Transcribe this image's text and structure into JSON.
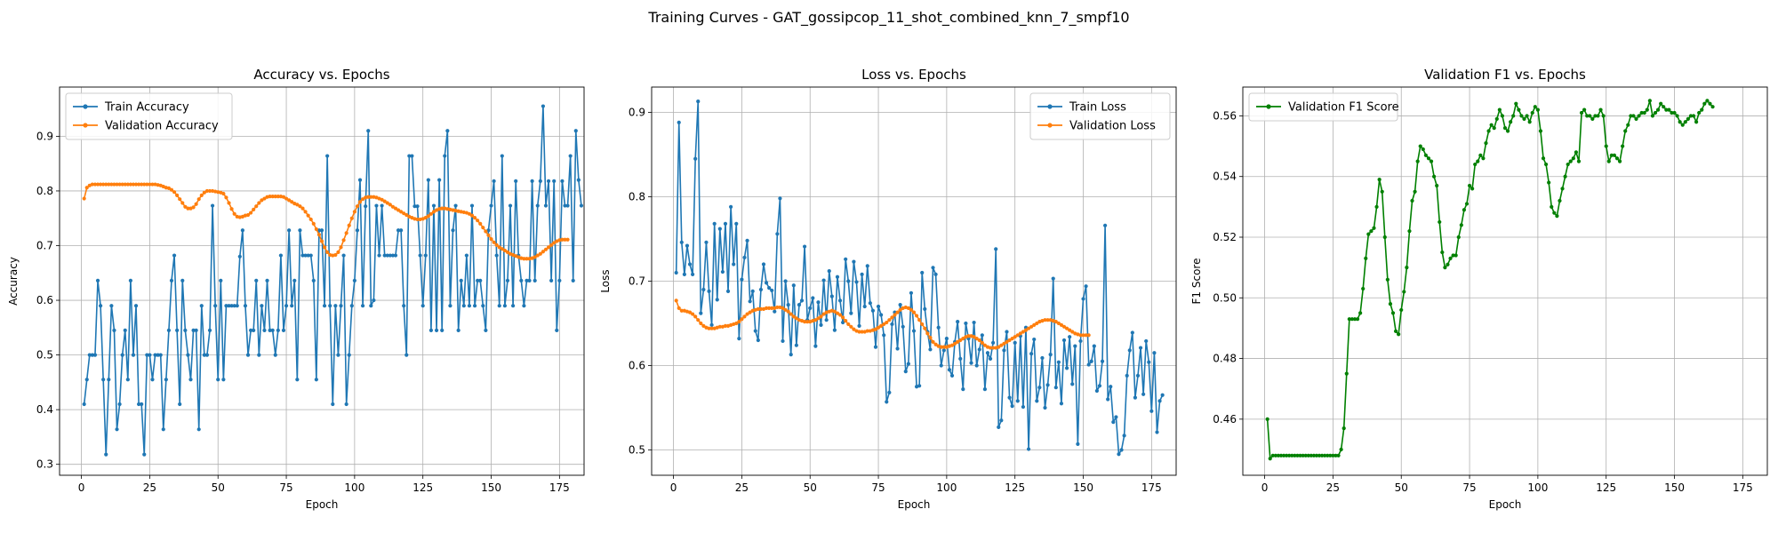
{
  "suptitle": "Training Curves - GAT_gossipcop_11_shot_combined_knn_7_smpf10",
  "colors": {
    "blue": "#1f77b4",
    "orange": "#ff7f0e",
    "green": "#008000",
    "grid": "#b0b0b0"
  },
  "chart_data": [
    {
      "type": "line",
      "title": "Accuracy vs. Epochs",
      "xlabel": "Epoch",
      "ylabel": "Accuracy",
      "xlim": [
        -8,
        184
      ],
      "ylim": [
        0.28,
        0.99
      ],
      "xticks": [
        0,
        25,
        50,
        75,
        100,
        125,
        150,
        175
      ],
      "yticks": [
        0.3,
        0.4,
        0.5,
        0.6,
        0.7,
        0.8,
        0.9
      ],
      "ytick_labels": [
        "0.3",
        "0.4",
        "0.5",
        "0.6",
        "0.7",
        "0.8",
        "0.9"
      ],
      "legend_loc": "upper-left",
      "grid": true,
      "series": [
        {
          "name": "Train Accuracy",
          "color": "#1f77b4",
          "x0": 1,
          "values": [
            0.41,
            0.455,
            0.5,
            0.5,
            0.5,
            0.636,
            0.59,
            0.455,
            0.318,
            0.455,
            0.59,
            0.545,
            0.364,
            0.41,
            0.5,
            0.545,
            0.455,
            0.636,
            0.5,
            0.59,
            0.41,
            0.41,
            0.318,
            0.5,
            0.5,
            0.455,
            0.5,
            0.5,
            0.5,
            0.364,
            0.455,
            0.545,
            0.636,
            0.682,
            0.545,
            0.41,
            0.636,
            0.545,
            0.5,
            0.455,
            0.545,
            0.545,
            0.364,
            0.59,
            0.5,
            0.5,
            0.545,
            0.773,
            0.59,
            0.455,
            0.636,
            0.455,
            0.59,
            0.59,
            0.59,
            0.59,
            0.59,
            0.68,
            0.728,
            0.59,
            0.5,
            0.545,
            0.545,
            0.636,
            0.5,
            0.59,
            0.545,
            0.636,
            0.545,
            0.545,
            0.5,
            0.545,
            0.682,
            0.545,
            0.59,
            0.728,
            0.59,
            0.636,
            0.455,
            0.728,
            0.682,
            0.682,
            0.682,
            0.682,
            0.636,
            0.455,
            0.728,
            0.728,
            0.59,
            0.864,
            0.59,
            0.41,
            0.59,
            0.5,
            0.59,
            0.682,
            0.41,
            0.5,
            0.59,
            0.636,
            0.728,
            0.82,
            0.59,
            0.772,
            0.91,
            0.59,
            0.6,
            0.773,
            0.682,
            0.773,
            0.682,
            0.682,
            0.682,
            0.682,
            0.682,
            0.728,
            0.728,
            0.59,
            0.5,
            0.864,
            0.864,
            0.772,
            0.772,
            0.682,
            0.59,
            0.682,
            0.82,
            0.545,
            0.773,
            0.545,
            0.82,
            0.545,
            0.864,
            0.91,
            0.59,
            0.728,
            0.773,
            0.545,
            0.636,
            0.59,
            0.682,
            0.59,
            0.773,
            0.59,
            0.636,
            0.636,
            0.59,
            0.545,
            0.728,
            0.773,
            0.818,
            0.682,
            0.59,
            0.864,
            0.59,
            0.636,
            0.773,
            0.59,
            0.818,
            0.682,
            0.636,
            0.59,
            0.636,
            0.636,
            0.818,
            0.636,
            0.773,
            0.818,
            0.955,
            0.773,
            0.818,
            0.636,
            0.818,
            0.545,
            0.636,
            0.818,
            0.773,
            0.773,
            0.864,
            0.636,
            0.91,
            0.82,
            0.773
          ]
        },
        {
          "name": "Validation Accuracy",
          "color": "#ff7f0e",
          "x0": 1,
          "values": [
            0.786,
            0.806,
            0.81,
            0.812,
            0.812,
            0.812,
            0.812,
            0.812,
            0.812,
            0.812,
            0.812,
            0.812,
            0.812,
            0.812,
            0.812,
            0.812,
            0.812,
            0.812,
            0.812,
            0.812,
            0.812,
            0.812,
            0.812,
            0.812,
            0.812,
            0.812,
            0.812,
            0.811,
            0.81,
            0.808,
            0.806,
            0.805,
            0.802,
            0.798,
            0.792,
            0.785,
            0.778,
            0.771,
            0.768,
            0.768,
            0.77,
            0.776,
            0.785,
            0.792,
            0.797,
            0.8,
            0.8,
            0.8,
            0.799,
            0.798,
            0.797,
            0.795,
            0.788,
            0.778,
            0.767,
            0.758,
            0.753,
            0.752,
            0.753,
            0.755,
            0.756,
            0.76,
            0.766,
            0.772,
            0.778,
            0.783,
            0.786,
            0.789,
            0.79,
            0.79,
            0.79,
            0.79,
            0.79,
            0.789,
            0.786,
            0.783,
            0.78,
            0.777,
            0.775,
            0.772,
            0.768,
            0.762,
            0.755,
            0.748,
            0.74,
            0.73,
            0.72,
            0.708,
            0.697,
            0.688,
            0.683,
            0.682,
            0.683,
            0.688,
            0.697,
            0.71,
            0.723,
            0.737,
            0.75,
            0.762,
            0.772,
            0.78,
            0.785,
            0.788,
            0.789,
            0.789,
            0.789,
            0.788,
            0.786,
            0.784,
            0.781,
            0.778,
            0.775,
            0.771,
            0.768,
            0.765,
            0.762,
            0.759,
            0.756,
            0.753,
            0.751,
            0.749,
            0.748,
            0.748,
            0.749,
            0.751,
            0.754,
            0.758,
            0.762,
            0.765,
            0.767,
            0.768,
            0.768,
            0.767,
            0.766,
            0.765,
            0.764,
            0.763,
            0.762,
            0.761,
            0.76,
            0.758,
            0.755,
            0.751,
            0.746,
            0.74,
            0.733,
            0.726,
            0.719,
            0.712,
            0.706,
            0.701,
            0.697,
            0.694,
            0.691,
            0.688,
            0.685,
            0.683,
            0.681,
            0.679,
            0.677,
            0.676,
            0.676,
            0.676,
            0.677,
            0.679,
            0.682,
            0.685,
            0.689,
            0.693,
            0.697,
            0.701,
            0.705,
            0.708,
            0.71,
            0.711,
            0.711,
            0.711
          ]
        }
      ]
    },
    {
      "type": "line",
      "title": "Loss vs. Epochs",
      "xlabel": "Epoch",
      "ylabel": "Loss",
      "xlim": [
        -8,
        184
      ],
      "ylim": [
        0.47,
        0.93
      ],
      "xticks": [
        0,
        25,
        50,
        75,
        100,
        125,
        150,
        175
      ],
      "yticks": [
        0.5,
        0.6,
        0.7,
        0.8,
        0.9
      ],
      "ytick_labels": [
        "0.5",
        "0.6",
        "0.7",
        "0.8",
        "0.9"
      ],
      "legend_loc": "upper-right",
      "grid": true,
      "series": [
        {
          "name": "Train Loss",
          "color": "#1f77b4",
          "x0": 1,
          "values": [
            0.71,
            0.888,
            0.746,
            0.708,
            0.742,
            0.72,
            0.708,
            0.845,
            0.913,
            0.662,
            0.69,
            0.746,
            0.688,
            0.648,
            0.768,
            0.678,
            0.762,
            0.711,
            0.768,
            0.688,
            0.788,
            0.72,
            0.768,
            0.632,
            0.702,
            0.728,
            0.748,
            0.676,
            0.688,
            0.641,
            0.63,
            0.69,
            0.72,
            0.698,
            0.692,
            0.689,
            0.664,
            0.756,
            0.798,
            0.629,
            0.7,
            0.672,
            0.613,
            0.695,
            0.624,
            0.672,
            0.677,
            0.741,
            0.654,
            0.668,
            0.68,
            0.623,
            0.675,
            0.648,
            0.701,
            0.654,
            0.712,
            0.682,
            0.642,
            0.705,
            0.677,
            0.651,
            0.726,
            0.7,
            0.662,
            0.723,
            0.699,
            0.647,
            0.708,
            0.67,
            0.718,
            0.674,
            0.665,
            0.622,
            0.67,
            0.66,
            0.636,
            0.557,
            0.568,
            0.649,
            0.663,
            0.62,
            0.672,
            0.646,
            0.593,
            0.602,
            0.686,
            0.641,
            0.575,
            0.576,
            0.71,
            0.667,
            0.64,
            0.619,
            0.716,
            0.708,
            0.645,
            0.6,
            0.618,
            0.632,
            0.595,
            0.588,
            0.628,
            0.652,
            0.608,
            0.572,
            0.65,
            0.632,
            0.603,
            0.651,
            0.6,
            0.619,
            0.636,
            0.572,
            0.615,
            0.608,
            0.627,
            0.738,
            0.527,
            0.535,
            0.618,
            0.64,
            0.562,
            0.552,
            0.627,
            0.558,
            0.635,
            0.551,
            0.645,
            0.501,
            0.614,
            0.631,
            0.558,
            0.574,
            0.609,
            0.55,
            0.577,
            0.613,
            0.703,
            0.574,
            0.604,
            0.555,
            0.63,
            0.597,
            0.634,
            0.578,
            0.623,
            0.507,
            0.629,
            0.679,
            0.694,
            0.601,
            0.605,
            0.623,
            0.57,
            0.576,
            0.605,
            0.766,
            0.56,
            0.575,
            0.533,
            0.539,
            0.495,
            0.5,
            0.517,
            0.588,
            0.618,
            0.639,
            0.562,
            0.588,
            0.621,
            0.566,
            0.629,
            0.604,
            0.546,
            0.615,
            0.521,
            0.558,
            0.565
          ]
        },
        {
          "name": "Validation Loss",
          "color": "#ff7f0e",
          "x0": 1,
          "values": [
            0.677,
            0.668,
            0.665,
            0.665,
            0.664,
            0.663,
            0.661,
            0.658,
            0.654,
            0.65,
            0.647,
            0.645,
            0.644,
            0.644,
            0.644,
            0.645,
            0.646,
            0.646,
            0.647,
            0.647,
            0.648,
            0.649,
            0.65,
            0.652,
            0.655,
            0.658,
            0.661,
            0.663,
            0.665,
            0.666,
            0.667,
            0.667,
            0.667,
            0.668,
            0.668,
            0.668,
            0.668,
            0.669,
            0.669,
            0.668,
            0.666,
            0.664,
            0.661,
            0.658,
            0.656,
            0.654,
            0.653,
            0.652,
            0.652,
            0.652,
            0.653,
            0.654,
            0.656,
            0.658,
            0.661,
            0.663,
            0.664,
            0.665,
            0.664,
            0.662,
            0.66,
            0.657,
            0.653,
            0.649,
            0.646,
            0.643,
            0.641,
            0.64,
            0.64,
            0.64,
            0.641,
            0.641,
            0.642,
            0.643,
            0.645,
            0.647,
            0.649,
            0.651,
            0.654,
            0.657,
            0.66,
            0.663,
            0.666,
            0.668,
            0.669,
            0.668,
            0.666,
            0.663,
            0.659,
            0.654,
            0.649,
            0.644,
            0.638,
            0.633,
            0.628,
            0.625,
            0.623,
            0.622,
            0.622,
            0.622,
            0.623,
            0.624,
            0.626,
            0.628,
            0.63,
            0.632,
            0.634,
            0.635,
            0.635,
            0.634,
            0.632,
            0.63,
            0.627,
            0.624,
            0.622,
            0.621,
            0.621,
            0.621,
            0.622,
            0.624,
            0.626,
            0.628,
            0.63,
            0.632,
            0.634,
            0.636,
            0.638,
            0.64,
            0.642,
            0.644,
            0.646,
            0.648,
            0.65,
            0.652,
            0.653,
            0.654,
            0.654,
            0.654,
            0.653,
            0.652,
            0.65,
            0.648,
            0.646,
            0.644,
            0.642,
            0.64,
            0.638,
            0.637,
            0.636,
            0.636,
            0.636,
            0.636
          ]
        }
      ]
    },
    {
      "type": "line",
      "title": "Validation F1 vs. Epochs",
      "xlabel": "Epoch",
      "ylabel": "F1 Score",
      "xlim": [
        -8,
        184
      ],
      "ylim": [
        0.4415,
        0.5695
      ],
      "xticks": [
        0,
        25,
        50,
        75,
        100,
        125,
        150,
        175
      ],
      "yticks": [
        0.46,
        0.48,
        0.5,
        0.52,
        0.54,
        0.56
      ],
      "ytick_labels": [
        "0.46",
        "0.48",
        "0.50",
        "0.52",
        "0.54",
        "0.56"
      ],
      "legend_loc": "upper-left",
      "grid": true,
      "series": [
        {
          "name": "Validation F1 Score",
          "color": "#008000",
          "x0": 1,
          "values": [
            0.46,
            0.447,
            0.448,
            0.448,
            0.448,
            0.448,
            0.448,
            0.448,
            0.448,
            0.448,
            0.448,
            0.448,
            0.448,
            0.448,
            0.448,
            0.448,
            0.448,
            0.448,
            0.448,
            0.448,
            0.448,
            0.448,
            0.448,
            0.448,
            0.448,
            0.448,
            0.448,
            0.45,
            0.457,
            0.475,
            0.493,
            0.493,
            0.493,
            0.493,
            0.495,
            0.503,
            0.513,
            0.521,
            0.522,
            0.523,
            0.53,
            0.539,
            0.535,
            0.52,
            0.506,
            0.498,
            0.495,
            0.489,
            0.488,
            0.496,
            0.502,
            0.51,
            0.522,
            0.532,
            0.535,
            0.545,
            0.55,
            0.549,
            0.547,
            0.546,
            0.545,
            0.54,
            0.537,
            0.525,
            0.515,
            0.51,
            0.511,
            0.513,
            0.514,
            0.514,
            0.52,
            0.524,
            0.529,
            0.531,
            0.537,
            0.536,
            0.544,
            0.545,
            0.547,
            0.546,
            0.551,
            0.555,
            0.557,
            0.556,
            0.559,
            0.562,
            0.56,
            0.556,
            0.555,
            0.558,
            0.56,
            0.564,
            0.562,
            0.56,
            0.559,
            0.56,
            0.558,
            0.561,
            0.563,
            0.562,
            0.555,
            0.546,
            0.544,
            0.538,
            0.53,
            0.528,
            0.527,
            0.532,
            0.536,
            0.54,
            0.544,
            0.545,
            0.546,
            0.548,
            0.545,
            0.561,
            0.562,
            0.56,
            0.56,
            0.559,
            0.56,
            0.56,
            0.562,
            0.56,
            0.55,
            0.545,
            0.547,
            0.547,
            0.546,
            0.545,
            0.55,
            0.555,
            0.557,
            0.56,
            0.56,
            0.559,
            0.56,
            0.561,
            0.561,
            0.562,
            0.565,
            0.56,
            0.561,
            0.562,
            0.564,
            0.563,
            0.562,
            0.562,
            0.561,
            0.561,
            0.56,
            0.558,
            0.557,
            0.558,
            0.559,
            0.56,
            0.56,
            0.558,
            0.561,
            0.562,
            0.564,
            0.565,
            0.564,
            0.563
          ]
        }
      ]
    }
  ]
}
